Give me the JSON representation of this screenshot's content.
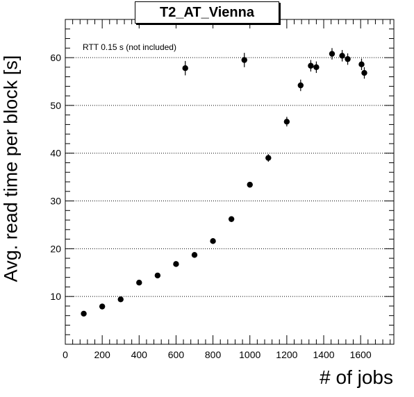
{
  "chart_data": {
    "type": "scatter",
    "title": "T2_AT_Vienna",
    "xlabel": "# of jobs",
    "ylabel": "Avg. read time per block [s]",
    "annotation": "RTT 0.15 s (not included)",
    "xlim": [
      0,
      1780
    ],
    "ylim": [
      0,
      68
    ],
    "xticks": [
      0,
      200,
      400,
      600,
      800,
      1000,
      1200,
      1400,
      1600
    ],
    "yticks": [
      10,
      20,
      30,
      40,
      50,
      60
    ],
    "grid": "horizontal-dotted",
    "series": [
      {
        "points": [
          {
            "x": 100,
            "y": 6.4,
            "err": 0.5
          },
          {
            "x": 200,
            "y": 7.9,
            "err": 0.5
          },
          {
            "x": 300,
            "y": 9.4,
            "err": 0.5
          },
          {
            "x": 400,
            "y": 12.9,
            "err": 0.5
          },
          {
            "x": 500,
            "y": 14.4,
            "err": 0.5
          },
          {
            "x": 600,
            "y": 16.8,
            "err": 0.5
          },
          {
            "x": 650,
            "y": 57.8,
            "err": 1.5
          },
          {
            "x": 700,
            "y": 18.7,
            "err": 0.6
          },
          {
            "x": 800,
            "y": 21.6,
            "err": 0.6
          },
          {
            "x": 900,
            "y": 26.2,
            "err": 0.6
          },
          {
            "x": 970,
            "y": 59.5,
            "err": 1.5
          },
          {
            "x": 1000,
            "y": 33.4,
            "err": 0.6
          },
          {
            "x": 1100,
            "y": 39.0,
            "err": 0.8
          },
          {
            "x": 1200,
            "y": 46.6,
            "err": 1.0
          },
          {
            "x": 1275,
            "y": 54.2,
            "err": 1.2
          },
          {
            "x": 1330,
            "y": 58.3,
            "err": 1.2
          },
          {
            "x": 1360,
            "y": 58.0,
            "err": 1.2
          },
          {
            "x": 1445,
            "y": 60.8,
            "err": 1.2
          },
          {
            "x": 1500,
            "y": 60.4,
            "err": 1.2
          },
          {
            "x": 1530,
            "y": 59.7,
            "err": 1.2
          },
          {
            "x": 1605,
            "y": 58.6,
            "err": 1.2
          },
          {
            "x": 1620,
            "y": 56.8,
            "err": 1.2
          }
        ]
      }
    ]
  }
}
